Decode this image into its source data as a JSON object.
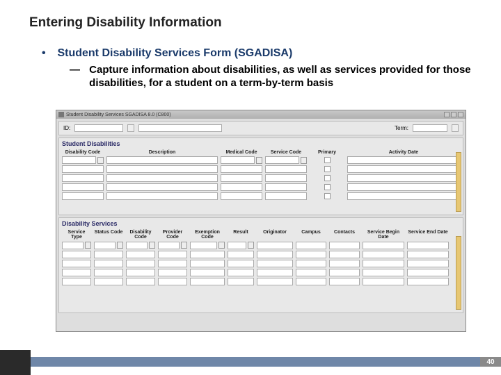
{
  "slide": {
    "title": "Entering Disability Information",
    "bullet1": "Student Disability Services Form (SGADISA)",
    "bullet2": "Capture information about disabilities, as well as services provided for those disabilities, for a student on a term-by-term basis",
    "page_number": "40"
  },
  "colors": {
    "heading": "#1a3a6a",
    "footer_band": "#6f87a8",
    "footer_dark": "#2a2a2a",
    "page_badge": "#8a8a8a",
    "panel_bg": "#e8e8e8",
    "scroll_bg": "#e7c773"
  },
  "window": {
    "title": "Student Disability Services  SGADISA  8.0  (C800)",
    "keyblock": {
      "id_label": "ID:",
      "term_label": "Term:"
    },
    "panel1": {
      "title": "Student Disabilities",
      "columns": [
        "Disability Code",
        "Description",
        "Medical Code",
        "Service Code",
        "Primary",
        "Activity Date"
      ],
      "row_count": 5
    },
    "panel2": {
      "title": "Disability Services",
      "columns": [
        "Service Type",
        "Status Code",
        "Disability Code",
        "Provider Code",
        "Exemption Code",
        "Result",
        "Originator",
        "Campus",
        "Contacts",
        "Service Begin Date",
        "Service End Date"
      ],
      "row_count": 5
    }
  }
}
